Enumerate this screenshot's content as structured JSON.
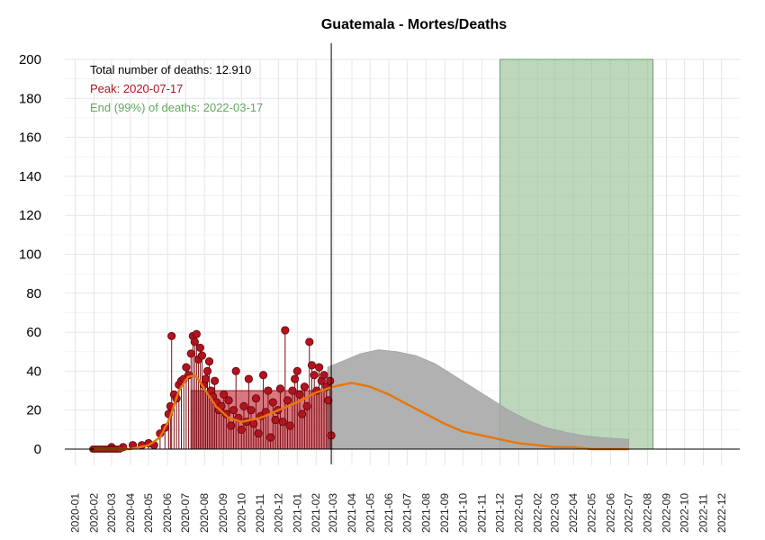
{
  "chart_data": {
    "type": "line",
    "title": "Guatemala - Mortes/Deaths",
    "xlabel": "",
    "ylabel": "",
    "ylim": [
      0,
      200
    ],
    "yticks": [
      "0",
      "20",
      "40",
      "60",
      "80",
      "100",
      "120",
      "140",
      "160",
      "180",
      "200"
    ],
    "x_range": [
      "2019-12-15",
      "2022-12-31"
    ],
    "x_tick_labels": [
      "2020-01",
      "2020-02",
      "2020-03",
      "2020-04",
      "2020-05",
      "2020-06",
      "2020-07",
      "2020-08",
      "2020-09",
      "2020-10",
      "2020-11",
      "2020-12",
      "2021-01",
      "2021-02",
      "2021-03",
      "2021-04",
      "2021-05",
      "2021-06",
      "2021-07",
      "2021-08",
      "2021-09",
      "2021-10",
      "2021-11",
      "2021-12",
      "2022-01",
      "2022-02",
      "2022-03",
      "2022-04",
      "2022-05",
      "2022-06",
      "2022-07",
      "2022-08",
      "2022-09",
      "2022-10",
      "2022-11",
      "2022-12"
    ],
    "grid": true,
    "annotations": {
      "total": "Total number of deaths: 12.910",
      "peak": "Peak: 2020-07-17",
      "end": "End (99%) of deaths: 2022-03-17"
    },
    "vertical_line_date": "2021-02-26",
    "peak_band": {
      "start": "2020-07-10",
      "end": "2021-02-28"
    },
    "end_band": {
      "start": "2021-12-01",
      "end": "2022-08-10"
    },
    "observed_points": [
      {
        "x": "2020-03-01",
        "y": 1
      },
      {
        "x": "2020-03-20",
        "y": 1
      },
      {
        "x": "2020-04-05",
        "y": 2
      },
      {
        "x": "2020-04-20",
        "y": 2
      },
      {
        "x": "2020-05-01",
        "y": 3
      },
      {
        "x": "2020-05-10",
        "y": 2
      },
      {
        "x": "2020-05-20",
        "y": 8
      },
      {
        "x": "2020-05-28",
        "y": 11
      },
      {
        "x": "2020-06-03",
        "y": 18
      },
      {
        "x": "2020-06-06",
        "y": 22
      },
      {
        "x": "2020-06-08",
        "y": 58
      },
      {
        "x": "2020-06-12",
        "y": 28
      },
      {
        "x": "2020-06-16",
        "y": 26
      },
      {
        "x": "2020-06-20",
        "y": 33
      },
      {
        "x": "2020-06-24",
        "y": 35
      },
      {
        "x": "2020-06-28",
        "y": 36
      },
      {
        "x": "2020-07-02",
        "y": 42
      },
      {
        "x": "2020-07-06",
        "y": 38
      },
      {
        "x": "2020-07-10",
        "y": 49
      },
      {
        "x": "2020-07-13",
        "y": 58
      },
      {
        "x": "2020-07-16",
        "y": 55
      },
      {
        "x": "2020-07-19",
        "y": 59
      },
      {
        "x": "2020-07-22",
        "y": 46
      },
      {
        "x": "2020-07-25",
        "y": 52
      },
      {
        "x": "2020-07-28",
        "y": 48
      },
      {
        "x": "2020-07-31",
        "y": 33
      },
      {
        "x": "2020-08-03",
        "y": 36
      },
      {
        "x": "2020-08-06",
        "y": 40
      },
      {
        "x": "2020-08-09",
        "y": 45
      },
      {
        "x": "2020-08-12",
        "y": 30
      },
      {
        "x": "2020-08-15",
        "y": 27
      },
      {
        "x": "2020-08-18",
        "y": 35
      },
      {
        "x": "2020-08-21",
        "y": 24
      },
      {
        "x": "2020-08-25",
        "y": 20
      },
      {
        "x": "2020-08-29",
        "y": 22
      },
      {
        "x": "2020-09-02",
        "y": 28
      },
      {
        "x": "2020-09-06",
        "y": 18
      },
      {
        "x": "2020-09-10",
        "y": 25
      },
      {
        "x": "2020-09-14",
        "y": 12
      },
      {
        "x": "2020-09-18",
        "y": 20
      },
      {
        "x": "2020-09-22",
        "y": 40
      },
      {
        "x": "2020-09-26",
        "y": 16
      },
      {
        "x": "2020-10-01",
        "y": 10
      },
      {
        "x": "2020-10-05",
        "y": 22
      },
      {
        "x": "2020-10-09",
        "y": 14
      },
      {
        "x": "2020-10-13",
        "y": 36
      },
      {
        "x": "2020-10-17",
        "y": 20
      },
      {
        "x": "2020-10-21",
        "y": 13
      },
      {
        "x": "2020-10-25",
        "y": 26
      },
      {
        "x": "2020-10-29",
        "y": 8
      },
      {
        "x": "2020-11-02",
        "y": 17
      },
      {
        "x": "2020-11-06",
        "y": 38
      },
      {
        "x": "2020-11-10",
        "y": 19
      },
      {
        "x": "2020-11-14",
        "y": 30
      },
      {
        "x": "2020-11-18",
        "y": 6
      },
      {
        "x": "2020-11-22",
        "y": 24
      },
      {
        "x": "2020-11-26",
        "y": 15
      },
      {
        "x": "2020-11-30",
        "y": 20
      },
      {
        "x": "2020-12-04",
        "y": 31
      },
      {
        "x": "2020-12-08",
        "y": 14
      },
      {
        "x": "2020-12-12",
        "y": 61
      },
      {
        "x": "2020-12-16",
        "y": 25
      },
      {
        "x": "2020-12-20",
        "y": 12
      },
      {
        "x": "2020-12-24",
        "y": 30
      },
      {
        "x": "2020-12-28",
        "y": 36
      },
      {
        "x": "2021-01-01",
        "y": 40
      },
      {
        "x": "2021-01-05",
        "y": 28
      },
      {
        "x": "2021-01-09",
        "y": 18
      },
      {
        "x": "2021-01-13",
        "y": 32
      },
      {
        "x": "2021-01-17",
        "y": 22
      },
      {
        "x": "2021-01-21",
        "y": 55
      },
      {
        "x": "2021-01-25",
        "y": 43
      },
      {
        "x": "2021-01-29",
        "y": 38
      },
      {
        "x": "2021-02-02",
        "y": 30
      },
      {
        "x": "2021-02-06",
        "y": 42
      },
      {
        "x": "2021-02-10",
        "y": 35
      },
      {
        "x": "2021-02-14",
        "y": 38
      },
      {
        "x": "2021-02-18",
        "y": 32
      },
      {
        "x": "2021-02-21",
        "y": 25
      },
      {
        "x": "2021-02-24",
        "y": 35
      },
      {
        "x": "2021-02-26",
        "y": 7
      }
    ],
    "fitted_curve": [
      {
        "x": "2020-02-01",
        "y": 0
      },
      {
        "x": "2020-04-01",
        "y": 0
      },
      {
        "x": "2020-05-01",
        "y": 2
      },
      {
        "x": "2020-05-20",
        "y": 6
      },
      {
        "x": "2020-06-05",
        "y": 16
      },
      {
        "x": "2020-06-20",
        "y": 30
      },
      {
        "x": "2020-07-05",
        "y": 37
      },
      {
        "x": "2020-07-17",
        "y": 38
      },
      {
        "x": "2020-08-01",
        "y": 31
      },
      {
        "x": "2020-08-20",
        "y": 22
      },
      {
        "x": "2020-09-10",
        "y": 16
      },
      {
        "x": "2020-10-01",
        "y": 14
      },
      {
        "x": "2020-11-01",
        "y": 16
      },
      {
        "x": "2020-12-01",
        "y": 20
      },
      {
        "x": "2021-01-01",
        "y": 24
      },
      {
        "x": "2021-02-01",
        "y": 29
      },
      {
        "x": "2021-03-01",
        "y": 32
      },
      {
        "x": "2021-04-01",
        "y": 34
      },
      {
        "x": "2021-05-01",
        "y": 32
      },
      {
        "x": "2021-06-01",
        "y": 28
      },
      {
        "x": "2021-07-01",
        "y": 23
      },
      {
        "x": "2021-08-01",
        "y": 18
      },
      {
        "x": "2021-09-01",
        "y": 13
      },
      {
        "x": "2021-10-01",
        "y": 9
      },
      {
        "x": "2021-11-01",
        "y": 7
      },
      {
        "x": "2021-12-01",
        "y": 5
      },
      {
        "x": "2022-01-01",
        "y": 3
      },
      {
        "x": "2022-02-01",
        "y": 2
      },
      {
        "x": "2022-03-01",
        "y": 1
      },
      {
        "x": "2022-04-01",
        "y": 1
      },
      {
        "x": "2022-05-01",
        "y": 0
      },
      {
        "x": "2022-07-01",
        "y": 0
      }
    ],
    "projection_upper": [
      {
        "x": "2021-02-20",
        "y": 42
      },
      {
        "x": "2021-03-15",
        "y": 45
      },
      {
        "x": "2021-04-15",
        "y": 49
      },
      {
        "x": "2021-05-15",
        "y": 51
      },
      {
        "x": "2021-06-15",
        "y": 50
      },
      {
        "x": "2021-07-15",
        "y": 48
      },
      {
        "x": "2021-08-15",
        "y": 44
      },
      {
        "x": "2021-09-15",
        "y": 38
      },
      {
        "x": "2021-10-15",
        "y": 32
      },
      {
        "x": "2021-11-15",
        "y": 26
      },
      {
        "x": "2021-12-15",
        "y": 20
      },
      {
        "x": "2022-01-15",
        "y": 15
      },
      {
        "x": "2022-02-15",
        "y": 11
      },
      {
        "x": "2022-03-15",
        "y": 9
      },
      {
        "x": "2022-04-15",
        "y": 7
      },
      {
        "x": "2022-05-15",
        "y": 6
      },
      {
        "x": "2022-07-01",
        "y": 5
      }
    ],
    "colors": {
      "points": "#b3121f",
      "points_edge": "#5a0a0a",
      "stems": "#7a0d14",
      "peak_band": "#c5303c",
      "end_band": "#8fbc8f",
      "projection": "#a9a9a9",
      "fit_line": "#e8760a",
      "peak_text": "#b3121f",
      "end_text": "#62a862"
    }
  }
}
